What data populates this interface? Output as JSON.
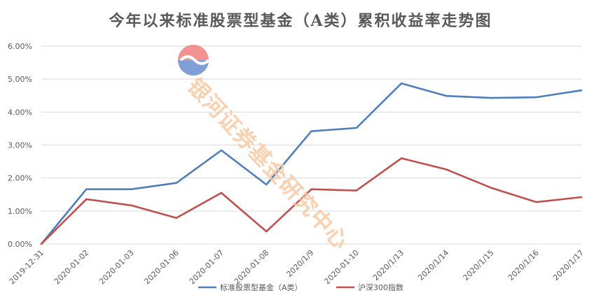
{
  "title": "今年以来标准股票型基金（A类）累积收益率走势图",
  "watermark": {
    "text": "银河证券基金研究中心"
  },
  "colors": {
    "series_a": "#4f7ebc",
    "series_b": "#c0504d",
    "grid": "#d9d9d9",
    "axis_text": "#595959"
  },
  "chart_data": {
    "type": "line",
    "title": "今年以来标准股票型基金（A类）累积收益率走势图",
    "xlabel": "",
    "ylabel": "",
    "x": [
      "2019-12-31",
      "2020-01-02",
      "2020-01-03",
      "2020-01-06",
      "2020-01-07",
      "2020-01-08",
      "2020/1/9",
      "2020-01-10",
      "2020/1/13",
      "2020/1/14",
      "2020/1/15",
      "2020/1/16",
      "2020/1/17"
    ],
    "series": [
      {
        "name": "标准股票型基金（A类）",
        "color": "#4f7ebc",
        "values": [
          0.0,
          1.66,
          1.66,
          1.85,
          2.84,
          1.8,
          3.42,
          3.52,
          4.87,
          4.49,
          4.43,
          4.45,
          4.66
        ]
      },
      {
        "name": "沪深300指数",
        "color": "#c0504d",
        "values": [
          0.0,
          1.36,
          1.17,
          0.79,
          1.55,
          0.38,
          1.66,
          1.62,
          2.6,
          2.26,
          1.7,
          1.27,
          1.42
        ]
      }
    ],
    "yticks": [
      "0.00%",
      "1.00%",
      "2.00%",
      "3.00%",
      "4.00%",
      "5.00%",
      "6.00%"
    ],
    "ylim": [
      0,
      6
    ],
    "grid": true,
    "legend": "bottom"
  }
}
